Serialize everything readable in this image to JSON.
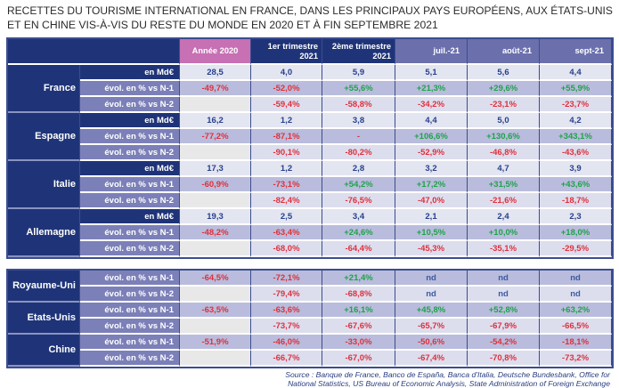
{
  "title": [
    "RECETTES DU TOURISME INTERNATIONAL EN FRANCE, DANS LES PRINCIPAUX PAYS EUROPÉENS, AUX ÉTATS-UNIS",
    "ET EN CHINE VIS-À-VIS DU RESTE DU MONDE EN 2020 ET À FIN SEPTEMBRE 2021"
  ],
  "columns": [
    "Année 2020",
    "1er trimestre 2021",
    "2ème trimestre 2021",
    "juil.-21",
    "août-21",
    "sept-21"
  ],
  "labels": {
    "md": "en Md€",
    "n1": "évol. en % vs N-1",
    "n2": "évol. en % vs N-2"
  },
  "table1": [
    {
      "country": "France",
      "md": [
        "28,5",
        "4,0",
        "5,9",
        "5,1",
        "5,6",
        "4,4"
      ],
      "n1": [
        "-49,7%",
        "-52,0%",
        "+55,6%",
        "+21,3%",
        "+29,6%",
        "+55,9%"
      ],
      "n2": [
        "",
        "-59,4%",
        "-58,8%",
        "-34,2%",
        "-23,1%",
        "-23,7%"
      ]
    },
    {
      "country": "Espagne",
      "md": [
        "16,2",
        "1,2",
        "3,8",
        "4,4",
        "5,0",
        "4,2"
      ],
      "n1": [
        "-77,2%",
        "-87,1%",
        "-",
        "+106,6%",
        "+130,6%",
        "+343,1%"
      ],
      "n2": [
        "",
        "-90,1%",
        "-80,2%",
        "-52,9%",
        "-46,8%",
        "-43,6%"
      ]
    },
    {
      "country": "Italie",
      "md": [
        "17,3",
        "1,2",
        "2,8",
        "3,2",
        "4,7",
        "3,9"
      ],
      "n1": [
        "-60,9%",
        "-73,1%",
        "+54,2%",
        "+17,2%",
        "+31,5%",
        "+43,6%"
      ],
      "n2": [
        "",
        "-82,4%",
        "-76,5%",
        "-47,0%",
        "-21,6%",
        "-18,7%"
      ]
    },
    {
      "country": "Allemagne",
      "md": [
        "19,3",
        "2,5",
        "3,4",
        "2,1",
        "2,4",
        "2,3"
      ],
      "n1": [
        "-48,2%",
        "-63,4%",
        "+24,6%",
        "+10,5%",
        "+10,0%",
        "+18,0%"
      ],
      "n2": [
        "",
        "-68,0%",
        "-64,4%",
        "-45,3%",
        "-35,1%",
        "-29,5%"
      ]
    }
  ],
  "table2": [
    {
      "country": "Royaume-Uni",
      "n1": [
        "-64,5%",
        "-72,1%",
        "+21,4%",
        "nd",
        "nd",
        "nd"
      ],
      "n2": [
        "",
        "-79,4%",
        "-68,8%",
        "nd",
        "nd",
        "nd"
      ]
    },
    {
      "country": "Etats-Unis",
      "n1": [
        "-63,5%",
        "-63,6%",
        "+16,1%",
        "+45,8%",
        "+52,8%",
        "+63,2%"
      ],
      "n2": [
        "",
        "-73,7%",
        "-67,6%",
        "-65,7%",
        "-67,9%",
        "-66,5%"
      ]
    },
    {
      "country": "Chine",
      "n1": [
        "-51,9%",
        "-46,0%",
        "-33,0%",
        "-50,6%",
        "-54,2%",
        "-18,1%"
      ],
      "n2": [
        "",
        "-66,7%",
        "-67,0%",
        "-67,4%",
        "-70,8%",
        "-73,2%"
      ]
    }
  ],
  "source": [
    "Source : Banque de France, Banco de España, Banca d'Italia, Deutsche Bundesbank, Office for",
    "National Statistics, US Bureau of Economic Analysis, State Administration of Foreign Exchange"
  ],
  "colors": {
    "navy": "#1f3478",
    "pink": "#c770b4",
    "month": "#6b70ad",
    "negative": "#e0303c",
    "positive": "#1fa24a"
  }
}
